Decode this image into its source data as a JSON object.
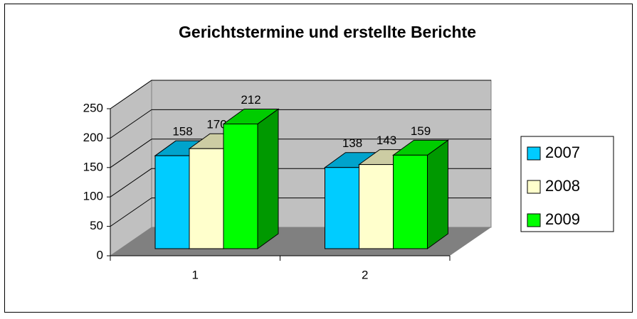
{
  "chart_data": {
    "type": "bar3d",
    "title": "Gerichtstermine und erstellte Berichte",
    "categories": [
      "1",
      "2"
    ],
    "series": [
      {
        "name": "2007",
        "color": "#00ccff",
        "values": [
          158,
          138
        ]
      },
      {
        "name": "2008",
        "color": "#ffffcc",
        "values": [
          170,
          143
        ]
      },
      {
        "name": "2009",
        "color": "#00ff00",
        "values": [
          212,
          159
        ]
      }
    ],
    "ylim": [
      0,
      250
    ],
    "yticks": [
      0,
      50,
      100,
      150,
      200,
      250
    ],
    "grid": true,
    "legend": "right"
  }
}
